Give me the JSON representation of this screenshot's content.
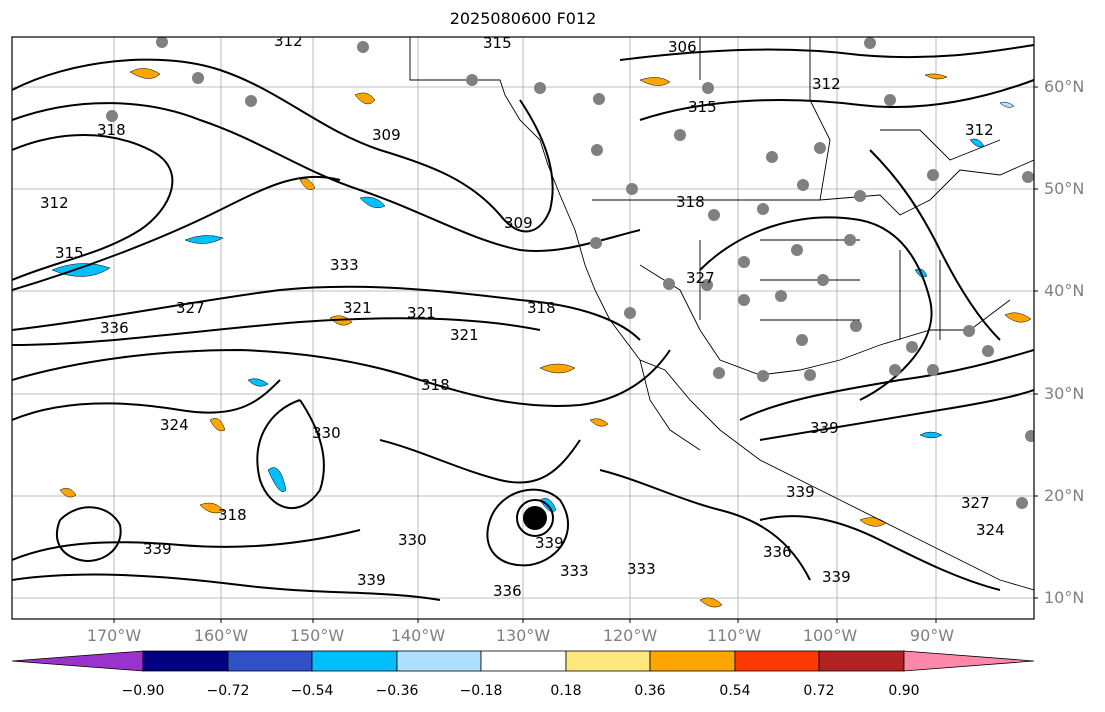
{
  "title": "2025080600 F012",
  "map": {
    "lat_labels": [
      "60°N",
      "50°N",
      "40°N",
      "30°N",
      "20°N",
      "10°N"
    ],
    "lon_labels": [
      "170°W",
      "160°W",
      "150°W",
      "140°W",
      "130°W",
      "120°W",
      "110°W",
      "100°W",
      "90°W"
    ],
    "contour_labels": [
      "312",
      "315",
      "318",
      "321",
      "324",
      "327",
      "330",
      "333",
      "336",
      "339",
      "309",
      "306"
    ],
    "field_description_colors": {
      "negative_strong": "#00bfff",
      "negative_light": "#aee0ff",
      "positive_light": "#ffe780",
      "positive": "#ffa500"
    }
  },
  "colorbar": {
    "colors": [
      "#9933cc",
      "#000080",
      "#3050c8",
      "#00bfff",
      "#aee0ff",
      "#ffffff",
      "#ffe780",
      "#ffa500",
      "#ff3a00",
      "#b22222",
      "#ff88aa"
    ],
    "tick_labels": [
      "−0.90",
      "−0.72",
      "−0.54",
      "−0.36",
      "−0.18",
      "0.18",
      "0.36",
      "0.54",
      "0.72",
      "0.90"
    ]
  }
}
